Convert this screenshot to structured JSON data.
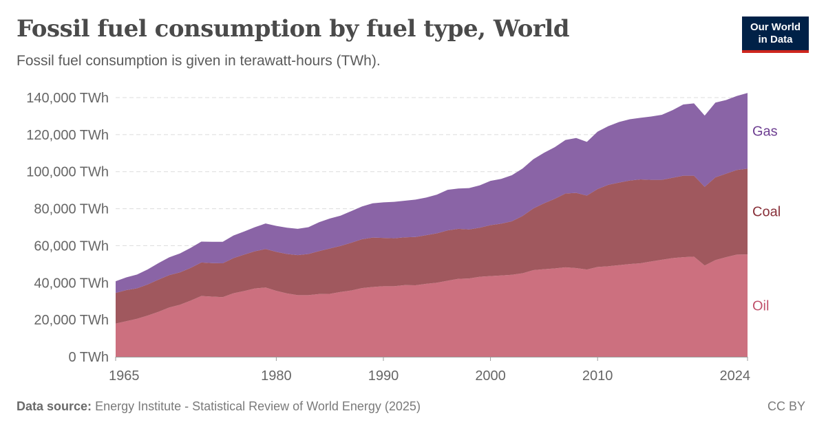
{
  "header": {
    "title": "Fossil fuel consumption by fuel type, World",
    "subtitle": "Fossil fuel consumption is given in terawatt-hours (TWh).",
    "logo_line1": "Our World",
    "logo_line2": "in Data"
  },
  "footer": {
    "source_label": "Data source:",
    "source_text": "Energy Institute - Statistical Review of World Energy (2025)",
    "license": "CC BY"
  },
  "chart_data": {
    "type": "area",
    "stacked": true,
    "title": "Fossil fuel consumption by fuel type, World",
    "ylabel": "",
    "xlabel": "",
    "unit": "TWh",
    "ylim": [
      0,
      140000
    ],
    "xlim": [
      1965,
      2024
    ],
    "grid": "horizontal dashed",
    "legend": "right (inline labels)",
    "yticks": [
      "0 TWh",
      "20,000 TWh",
      "40,000 TWh",
      "60,000 TWh",
      "80,000 TWh",
      "100,000 TWh",
      "120,000 TWh",
      "140,000 TWh"
    ],
    "xticks": [
      "1965",
      "1980",
      "1990",
      "2000",
      "2010",
      "2024"
    ],
    "x": [
      1965,
      1966,
      1967,
      1968,
      1969,
      1970,
      1971,
      1972,
      1973,
      1974,
      1975,
      1976,
      1977,
      1978,
      1979,
      1980,
      1981,
      1982,
      1983,
      1984,
      1985,
      1986,
      1987,
      1988,
      1989,
      1990,
      1991,
      1992,
      1993,
      1994,
      1995,
      1996,
      1997,
      1998,
      1999,
      2000,
      2001,
      2002,
      2003,
      2004,
      2005,
      2006,
      2007,
      2008,
      2009,
      2010,
      2011,
      2012,
      2013,
      2014,
      2015,
      2016,
      2017,
      2018,
      2019,
      2020,
      2021,
      2022,
      2023,
      2024
    ],
    "series": [
      {
        "name": "Oil",
        "color": "#cc707f",
        "label_color": "#c0506a",
        "values": [
          17900,
          19200,
          20500,
          22300,
          24300,
          26600,
          28100,
          30300,
          32800,
          32500,
          32200,
          34300,
          35500,
          36900,
          37400,
          35600,
          34200,
          33300,
          33300,
          33900,
          34000,
          35000,
          35800,
          37100,
          37700,
          38100,
          38100,
          38700,
          38600,
          39400,
          40000,
          41100,
          42100,
          42300,
          43200,
          43600,
          43900,
          44300,
          45100,
          46800,
          47300,
          47700,
          48300,
          47900,
          47100,
          48500,
          48900,
          49500,
          50100,
          50500,
          51500,
          52400,
          53300,
          53800,
          54100,
          49300,
          52200,
          53800,
          55200,
          55300
        ]
      },
      {
        "name": "Coal",
        "color": "#a0585e",
        "label_color": "#883039",
        "values": [
          16600,
          16800,
          16500,
          16800,
          17400,
          17500,
          17500,
          17700,
          18100,
          18100,
          18300,
          19000,
          19700,
          20100,
          20800,
          21100,
          21300,
          21600,
          22200,
          23200,
          24500,
          24900,
          25800,
          26400,
          26700,
          26100,
          25900,
          25800,
          26100,
          26300,
          26700,
          27200,
          27000,
          26500,
          26500,
          27500,
          28000,
          28900,
          31000,
          33300,
          35600,
          37600,
          39900,
          40600,
          40000,
          42100,
          44000,
          44600,
          45100,
          45300,
          44100,
          43200,
          43400,
          44000,
          43700,
          42500,
          44700,
          45100,
          45700,
          46300
        ]
      },
      {
        "name": "Gas",
        "color": "#8a64a6",
        "label_color": "#6d3e91",
        "values": [
          6300,
          6900,
          7400,
          8100,
          8900,
          9600,
          10200,
          10800,
          11300,
          11500,
          11600,
          12200,
          12500,
          13000,
          13800,
          14000,
          14200,
          14200,
          14500,
          15600,
          16200,
          16300,
          17100,
          17700,
          18500,
          19200,
          19700,
          19800,
          20200,
          20300,
          20900,
          21900,
          21800,
          22300,
          22900,
          23900,
          24200,
          24900,
          25600,
          26600,
          27300,
          27900,
          28900,
          29700,
          29000,
          31000,
          31700,
          32700,
          33100,
          33300,
          34200,
          35100,
          36500,
          38500,
          39100,
          38500,
          40400,
          39800,
          40000,
          40900
        ]
      }
    ]
  }
}
